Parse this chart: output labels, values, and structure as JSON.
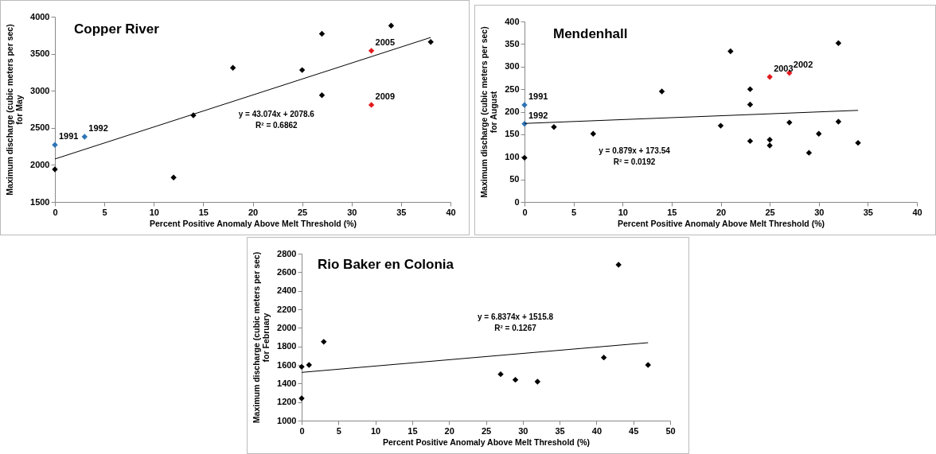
{
  "chart_data": [
    {
      "type": "scatter",
      "title": "Copper River",
      "xlabel": "Percent Positive Anomaly Above Melt Threshold (%)",
      "ylabel": "Maximum discharge (cubic meters per sec)\nfor May",
      "xlim": [
        0,
        40
      ],
      "xticks": [
        0,
        5,
        10,
        15,
        20,
        25,
        30,
        35,
        40
      ],
      "ylim": [
        1500,
        4000
      ],
      "yticks": [
        1500,
        2000,
        2500,
        3000,
        3500,
        4000
      ],
      "marker": "diamond",
      "series": [
        {
          "color": "#000000",
          "x": [
            0,
            12,
            14,
            18,
            25,
            27,
            27,
            34,
            38
          ],
          "values": [
            1940,
            1830,
            2670,
            3310,
            3280,
            3770,
            2940,
            3880,
            3660
          ]
        },
        {
          "color": "#2e75b6",
          "x": [
            0,
            3
          ],
          "values": [
            2270,
            2380
          ]
        },
        {
          "color": "#e31a1c",
          "x": [
            32,
            32
          ],
          "values": [
            3540,
            2810
          ]
        },
        {
          "type": "line",
          "marker": "none",
          "color": "#000000",
          "x": [
            0,
            38
          ],
          "values": [
            2080,
            3720
          ]
        }
      ],
      "annotations": [
        "y = 43.074x + 2078.6",
        "R² = 0.6862",
        {
          "text": "1991",
          "x": 0,
          "y": 2270
        },
        {
          "text": "1992",
          "x": 3,
          "y": 2380
        },
        {
          "text": "2005",
          "x": 32,
          "y": 3540
        },
        {
          "text": "2009",
          "x": 32,
          "y": 2810
        }
      ]
    },
    {
      "type": "scatter",
      "title": "Mendenhall",
      "xlabel": "Percent Positive Anomaly Above Melt Threshold (%)",
      "ylabel": "Maximum discharge (cubic meters per sec)\nfor August",
      "xlim": [
        0,
        40
      ],
      "xticks": [
        0,
        5,
        10,
        15,
        20,
        25,
        30,
        35,
        40
      ],
      "ylim": [
        0,
        400
      ],
      "yticks": [
        0,
        50,
        100,
        150,
        200,
        250,
        300,
        350,
        400
      ],
      "marker": "diamond",
      "series": [
        {
          "color": "#000000",
          "x": [
            0,
            3,
            7,
            14,
            20,
            21,
            23,
            23,
            23,
            25,
            25,
            27,
            29,
            30,
            32,
            32,
            34
          ],
          "values": [
            98,
            166,
            151,
            245,
            169,
            334,
            250,
            216,
            135,
            138,
            125,
            176,
            109,
            151,
            352,
            178,
            131
          ]
        },
        {
          "color": "#2e75b6",
          "x": [
            0,
            0
          ],
          "values": [
            215,
            173
          ]
        },
        {
          "color": "#e31a1c",
          "x": [
            25,
            27
          ],
          "values": [
            277,
            286
          ]
        },
        {
          "type": "line",
          "marker": "none",
          "color": "#000000",
          "x": [
            0,
            34
          ],
          "values": [
            174,
            203
          ]
        }
      ],
      "annotations": [
        "y = 0.879x + 173.54",
        "R² = 0.0192",
        {
          "text": "1991",
          "x": 0,
          "y": 215
        },
        {
          "text": "1992",
          "x": 0,
          "y": 173
        },
        {
          "text": "2003",
          "x": 25,
          "y": 277
        },
        {
          "text": "2002",
          "x": 27,
          "y": 286
        }
      ]
    },
    {
      "type": "scatter",
      "title": "Rio Baker en Colonia",
      "xlabel": "Percent Positive Anomaly Above Melt Threshold (%)",
      "ylabel": "Maximum discharge (cubic meters per sec)\nfor February",
      "xlim": [
        0,
        50
      ],
      "xticks": [
        0,
        5,
        10,
        15,
        20,
        25,
        30,
        35,
        40,
        45,
        50
      ],
      "ylim": [
        1000,
        2800
      ],
      "yticks": [
        1000,
        1200,
        1400,
        1600,
        1800,
        2000,
        2200,
        2400,
        2600,
        2800
      ],
      "marker": "diamond",
      "series": [
        {
          "color": "#000000",
          "x": [
            0,
            0,
            1,
            3,
            27,
            29,
            32,
            41,
            43,
            47
          ],
          "values": [
            1580,
            1240,
            1600,
            1850,
            1500,
            1440,
            1420,
            1680,
            2680,
            1600
          ]
        },
        {
          "type": "line",
          "marker": "none",
          "color": "#000000",
          "x": [
            0,
            47
          ],
          "values": [
            1520,
            1840
          ]
        }
      ],
      "annotations": [
        "y = 6.8374x + 1515.8",
        "R² = 0.1267"
      ]
    }
  ]
}
